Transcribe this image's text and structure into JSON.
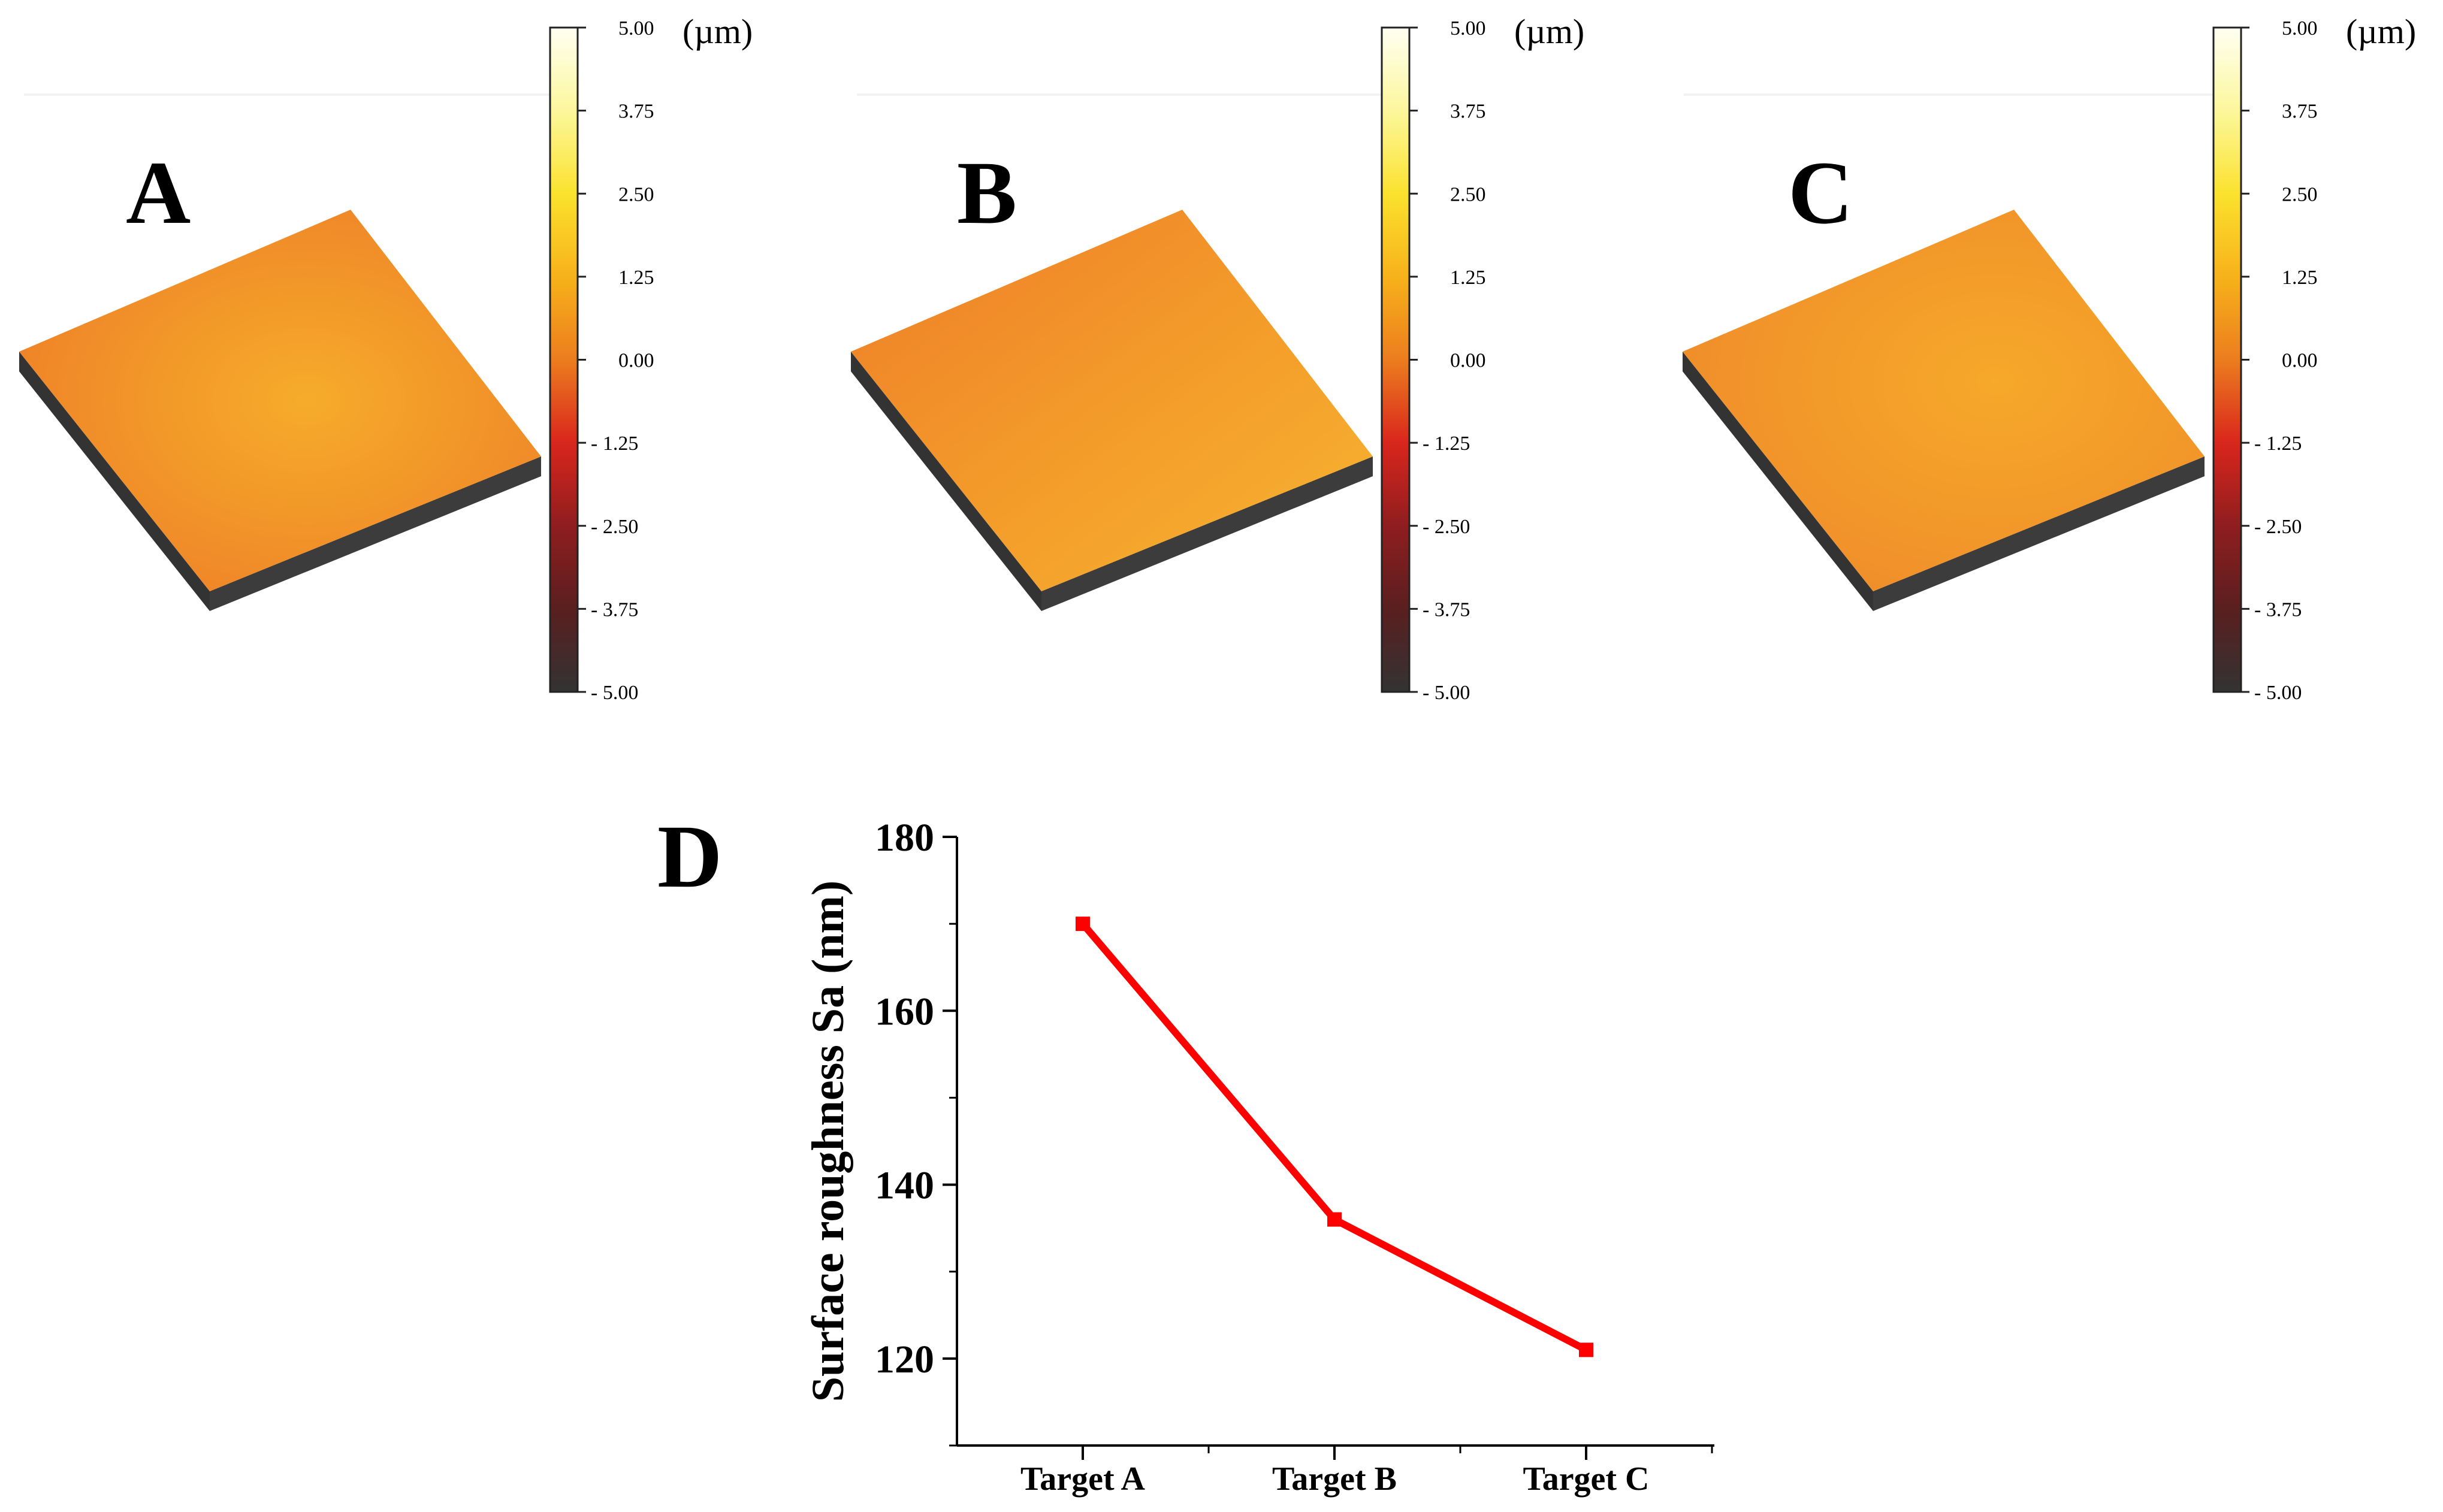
{
  "panels": [
    {
      "letter": "A"
    },
    {
      "letter": "B"
    },
    {
      "letter": "C"
    }
  ],
  "colorbar": {
    "unit": "(µm)",
    "ticks": [
      "5.00",
      "3.75",
      "2.50",
      "1.25",
      "0.00",
      "- 1.25",
      "- 2.50",
      "- 3.75",
      "- 5.00"
    ],
    "range": [
      -5.0,
      5.0
    ],
    "colors": [
      "#fffff2",
      "#fcf79c",
      "#fbe22e",
      "#f7b21a",
      "#ec7d1e",
      "#d9261c",
      "#8f1d1f",
      "#5a1f1f",
      "#333333"
    ]
  },
  "chart_data": {
    "type": "line",
    "panel_letter": "D",
    "title": "",
    "xlabel": "",
    "ylabel": "Surface roughness  Sa (nm)",
    "categories": [
      "Target A",
      "Target B",
      "Target C"
    ],
    "series": [
      {
        "name": "Sa",
        "color": "#ff0000",
        "values": [
          170,
          136,
          121
        ]
      }
    ],
    "ylim": [
      110,
      180
    ],
    "yticks": [
      120,
      140,
      160,
      180
    ],
    "yminor": [
      110,
      130,
      150,
      170
    ],
    "grid": false
  }
}
